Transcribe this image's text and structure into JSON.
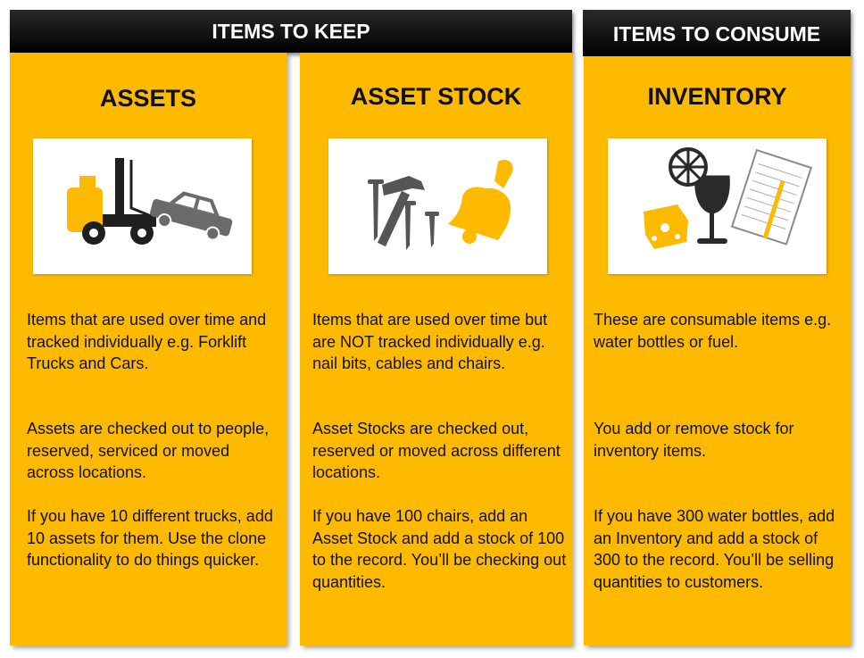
{
  "banners": {
    "keep": "ITEMS TO KEEP",
    "consume": "ITEMS TO CONSUME"
  },
  "columns": [
    {
      "title": "ASSETS",
      "icon": "tow-truck-icon",
      "paragraphs": [
        "Items that are used over time and tracked individually e.g. Forklift Trucks and Cars.",
        "Assets are checked out to people, reserved, serviced or moved across locations.",
        "If you have 10 different trucks, add 10 assets for them. Use the clone functionality to do things quicker."
      ]
    },
    {
      "title": "ASSET STOCK",
      "icon": "tools-and-bell-icon",
      "paragraphs": [
        "Items that are used over time but are NOT tracked individually e.g. nail bits, cables and chairs.",
        "Asset Stocks are checked out, reserved or moved across different locations.",
        "If you have 100 chairs, add an Asset Stock and add a stock of 100 to the record. You’ll be checking out quantities."
      ]
    },
    {
      "title": "INVENTORY",
      "icon": "food-drink-notepad-icon",
      "paragraphs": [
        "These are consumable items e.g. water bottles or fuel.",
        "You add or remove stock for inventory items.",
        "If you have 300 water bottles, add an Inventory and add a stock of 300 to the record. You’ll be selling quantities to customers."
      ]
    }
  ],
  "colors": {
    "accent": "#fdba00",
    "banner": "#000000",
    "icon_dark": "#222222",
    "icon_gray": "#666666"
  }
}
